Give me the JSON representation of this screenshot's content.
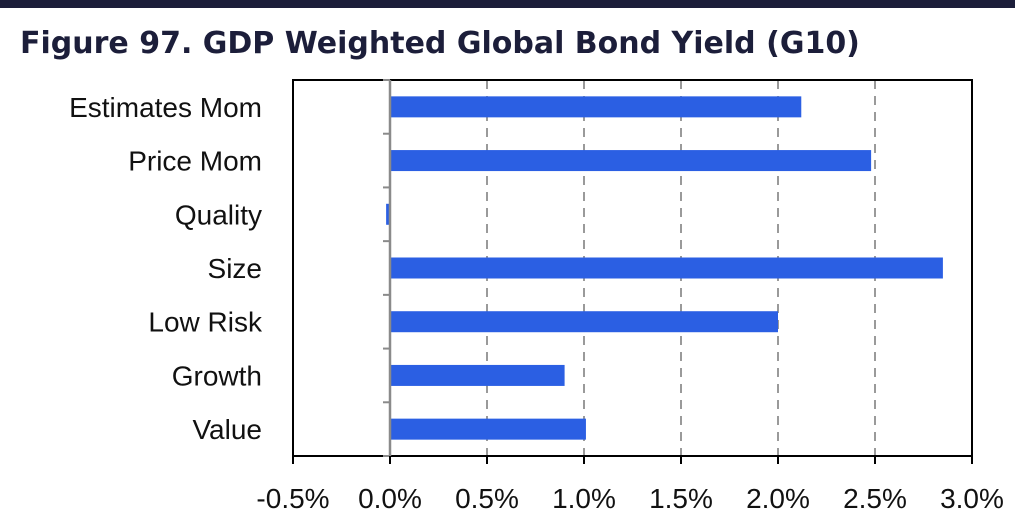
{
  "chart_data": {
    "type": "bar",
    "orientation": "horizontal",
    "title": "Figure 97. GDP Weighted Global Bond Yield (G10)",
    "categories": [
      "Estimates Mom",
      "Price Mom",
      "Quality",
      "Size",
      "Low Risk",
      "Growth",
      "Value"
    ],
    "values": [
      2.12,
      2.48,
      -0.02,
      2.85,
      2.0,
      0.9,
      1.01
    ],
    "value_unit": "%",
    "xlim": [
      -0.5,
      3.0
    ],
    "xticks": [
      -0.5,
      0.0,
      0.5,
      1.0,
      1.5,
      2.0,
      2.5,
      3.0
    ],
    "xtick_labels": [
      "-0.5%",
      "0.0%",
      "0.5%",
      "1.0%",
      "1.5%",
      "2.0%",
      "2.5%",
      "3.0%"
    ],
    "grid": "vertical dashed",
    "bar_color": "#2b5fe3",
    "grid_color": "#9a9a9a"
  }
}
